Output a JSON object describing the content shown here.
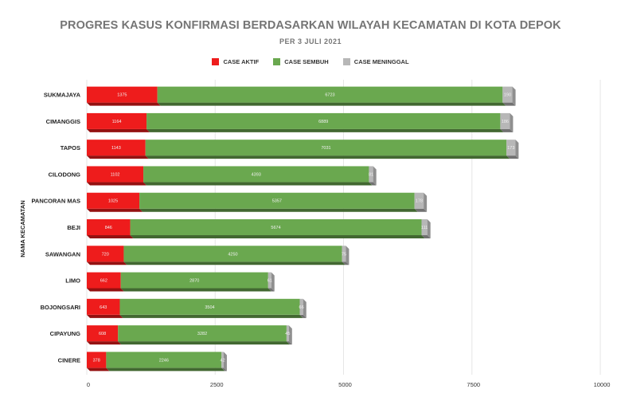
{
  "chart_data": {
    "type": "bar",
    "orientation": "horizontal",
    "stacked": true,
    "title": "PROGRES KASUS KONFIRMASI BERDASARKAN WILAYAH KECAMATAN DI KOTA DEPOK",
    "subtitle": "PER 3 JULI 2021",
    "ylabel": "NAMA KECAMATAN",
    "xlabel": "",
    "xlim": [
      0,
      10000
    ],
    "xticks": [
      0,
      2500,
      5000,
      7500,
      10000
    ],
    "legend_position": "top",
    "categories": [
      "SUKMAJAYA",
      "CIMANGGIS",
      "TAPOS",
      "CILODONG",
      "PANCORAN MAS",
      "BEJI",
      "SAWANGAN",
      "LIMO",
      "BOJONGSARI",
      "CIPAYUNG",
      "CINERE"
    ],
    "series": [
      {
        "name": "CASE AKTIF",
        "color": "#ee1c1c",
        "values": [
          1375,
          1164,
          1143,
          1102,
          1025,
          846,
          720,
          662,
          643,
          608,
          378
        ]
      },
      {
        "name": "CASE SEMBUH",
        "color": "#6aa84f",
        "values": [
          6723,
          6889,
          7031,
          4393,
          5357,
          5674,
          4250,
          2870,
          3504,
          3282,
          2246
        ]
      },
      {
        "name": "CASE MENINGGAL",
        "color": "#b7b7b7",
        "values": [
          190,
          186,
          173,
          81,
          178,
          111,
          75,
          61,
          66,
          45,
          42
        ]
      }
    ]
  }
}
